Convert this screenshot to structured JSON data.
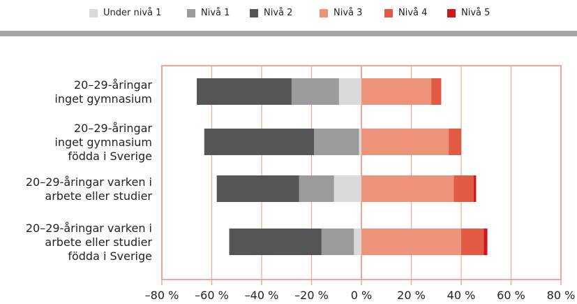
{
  "chart_data": {
    "type": "bar",
    "orientation": "horizontal-diverging",
    "categories": [
      [
        "20–29-åringar",
        "inget gymnasium"
      ],
      [
        "20–29-åringar",
        "inget gymnasium",
        "födda i Sverige"
      ],
      [
        "20–29-åringar varken i",
        "arbete eller studier"
      ],
      [
        "20–29-åringar varken i",
        "arbete eller studier",
        "födda i Sverige"
      ]
    ],
    "series": [
      {
        "name": "Under nivå 1",
        "color": "#d9d9d9",
        "side": "negative",
        "values": [
          -9,
          -1,
          -11,
          -3
        ]
      },
      {
        "name": "Nivå 1",
        "color": "#9b9b9b",
        "side": "negative",
        "values": [
          -19,
          -18,
          -14,
          -13
        ]
      },
      {
        "name": "Nivå 2",
        "color": "#555555",
        "side": "negative",
        "values": [
          -38,
          -44,
          -33,
          -37
        ]
      },
      {
        "name": "Nivå 3",
        "color": "#ec9379",
        "side": "positive",
        "values": [
          28,
          35,
          37,
          40
        ]
      },
      {
        "name": "Nivå 4",
        "color": "#e05a44",
        "side": "positive",
        "values": [
          4,
          5,
          8,
          9
        ]
      },
      {
        "name": "Nivå 5",
        "color": "#d0171e",
        "side": "positive",
        "values": [
          0,
          0,
          1,
          1.5
        ]
      }
    ],
    "xlim": [
      -80,
      80
    ],
    "xticks": [
      -80,
      -60,
      -40,
      -20,
      0,
      20,
      40,
      60,
      80
    ],
    "xtick_labels": [
      "–80 %",
      "–60 %",
      "–40 %",
      "–20 %",
      "0 %",
      "20 %",
      "40 %",
      "60 %",
      "80 %"
    ],
    "grid": true,
    "legend_position": "top",
    "frame_color": "#f0a690"
  }
}
